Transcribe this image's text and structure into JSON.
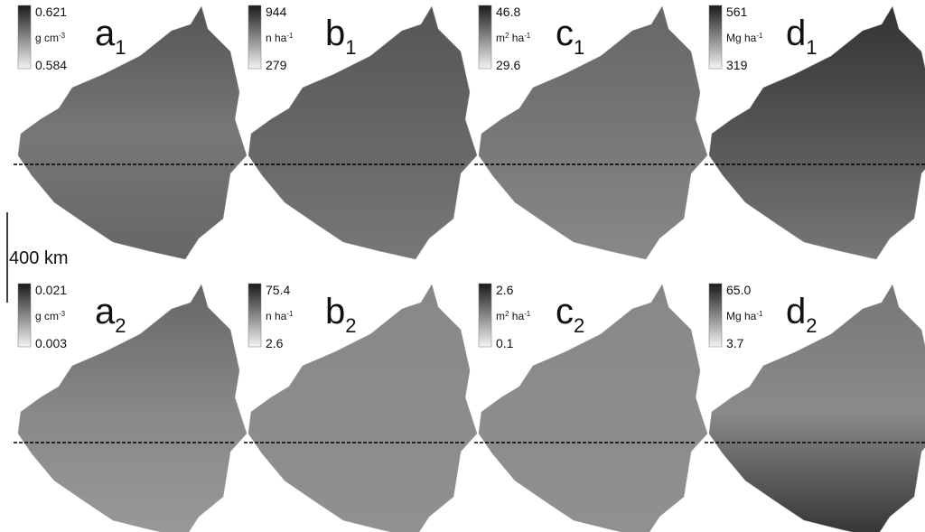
{
  "panels": [
    {
      "letter": "a",
      "sub": "1",
      "max": "0.621",
      "unit": [
        {
          "t": "g cm"
        },
        {
          "sup": "-3"
        }
      ],
      "min": "0.584"
    },
    {
      "letter": "b",
      "sub": "1",
      "max": "944",
      "unit": [
        {
          "t": "n ha"
        },
        {
          "sup": "-1"
        }
      ],
      "min": "279"
    },
    {
      "letter": "c",
      "sub": "1",
      "max": "46.8",
      "unit": [
        {
          "t": "m"
        },
        {
          "sup": "2"
        },
        {
          "t": " ha"
        },
        {
          "sup": "-1"
        }
      ],
      "min": "29.6"
    },
    {
      "letter": "d",
      "sub": "1",
      "max": "561",
      "unit": [
        {
          "t": "Mg ha"
        },
        {
          "sup": "-1"
        }
      ],
      "min": "319"
    },
    {
      "letter": "a",
      "sub": "2",
      "max": "0.021",
      "unit": [
        {
          "t": "g cm"
        },
        {
          "sup": "-3"
        }
      ],
      "min": "0.003"
    },
    {
      "letter": "b",
      "sub": "2",
      "max": "75.4",
      "unit": [
        {
          "t": "n ha"
        },
        {
          "sup": "-1"
        }
      ],
      "min": "2.6"
    },
    {
      "letter": "c",
      "sub": "2",
      "max": "2.6",
      "unit": [
        {
          "t": "m"
        },
        {
          "sup": "2"
        },
        {
          "t": " ha"
        },
        {
          "sup": "-1"
        }
      ],
      "min": "0.1"
    },
    {
      "letter": "d",
      "sub": "2",
      "max": "65.0",
      "unit": [
        {
          "t": "Mg ha"
        },
        {
          "sup": "-1"
        }
      ],
      "min": "3.7"
    }
  ],
  "scale_bar": "400 km"
}
